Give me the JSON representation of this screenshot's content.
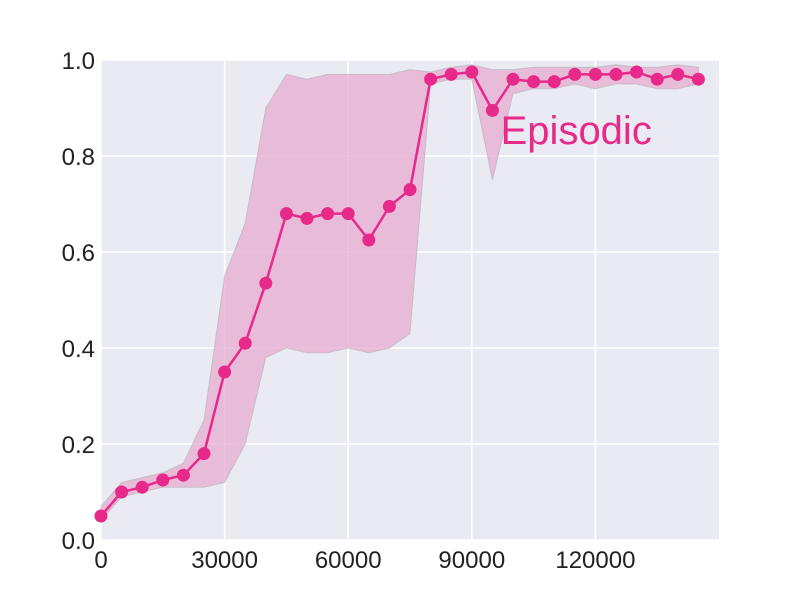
{
  "chart_data": {
    "type": "line",
    "title": "",
    "xlabel": "",
    "ylabel": "",
    "xlim": [
      0,
      150000
    ],
    "ylim": [
      0.0,
      1.0
    ],
    "x_ticks": [
      0,
      30000,
      60000,
      90000,
      120000
    ],
    "x_tick_labels": [
      "0",
      "30000",
      "60000",
      "90000",
      "120000"
    ],
    "y_ticks": [
      0.0,
      0.2,
      0.4,
      0.6,
      0.8,
      1.0
    ],
    "y_tick_labels": [
      "0.0",
      "0.2",
      "0.4",
      "0.6",
      "0.8",
      "1.0"
    ],
    "grid": true,
    "background_color": "#eaeaf2",
    "grid_color": "#ffffff",
    "series": [
      {
        "name": "Episodic",
        "color": "#e7298a",
        "band_color": "#e7a8cf",
        "markers": true,
        "x": [
          0,
          5000,
          10000,
          15000,
          20000,
          25000,
          30000,
          35000,
          40000,
          45000,
          50000,
          55000,
          60000,
          65000,
          70000,
          75000,
          80000,
          85000,
          90000,
          95000,
          100000,
          105000,
          110000,
          115000,
          120000,
          125000,
          130000,
          135000,
          140000,
          145000
        ],
        "y": [
          0.05,
          0.1,
          0.11,
          0.125,
          0.135,
          0.18,
          0.35,
          0.41,
          0.535,
          0.68,
          0.67,
          0.68,
          0.68,
          0.625,
          0.695,
          0.73,
          0.96,
          0.97,
          0.975,
          0.895,
          0.96,
          0.955,
          0.955,
          0.97,
          0.97,
          0.97,
          0.975,
          0.96,
          0.97,
          0.96
        ],
        "lower": [
          0.04,
          0.09,
          0.1,
          0.11,
          0.11,
          0.11,
          0.12,
          0.2,
          0.38,
          0.4,
          0.39,
          0.39,
          0.4,
          0.39,
          0.4,
          0.43,
          0.95,
          0.96,
          0.96,
          0.75,
          0.93,
          0.94,
          0.94,
          0.95,
          0.94,
          0.95,
          0.95,
          0.94,
          0.94,
          0.95
        ],
        "upper": [
          0.07,
          0.12,
          0.13,
          0.14,
          0.16,
          0.25,
          0.55,
          0.66,
          0.9,
          0.97,
          0.96,
          0.97,
          0.97,
          0.97,
          0.97,
          0.98,
          0.975,
          0.985,
          0.99,
          0.98,
          0.98,
          0.985,
          0.985,
          0.985,
          0.985,
          0.99,
          0.985,
          0.985,
          0.99,
          0.985
        ]
      }
    ],
    "annotations": [
      {
        "text": "Episodic",
        "x": 97000,
        "y": 0.825,
        "color": "#e7298a"
      }
    ]
  }
}
